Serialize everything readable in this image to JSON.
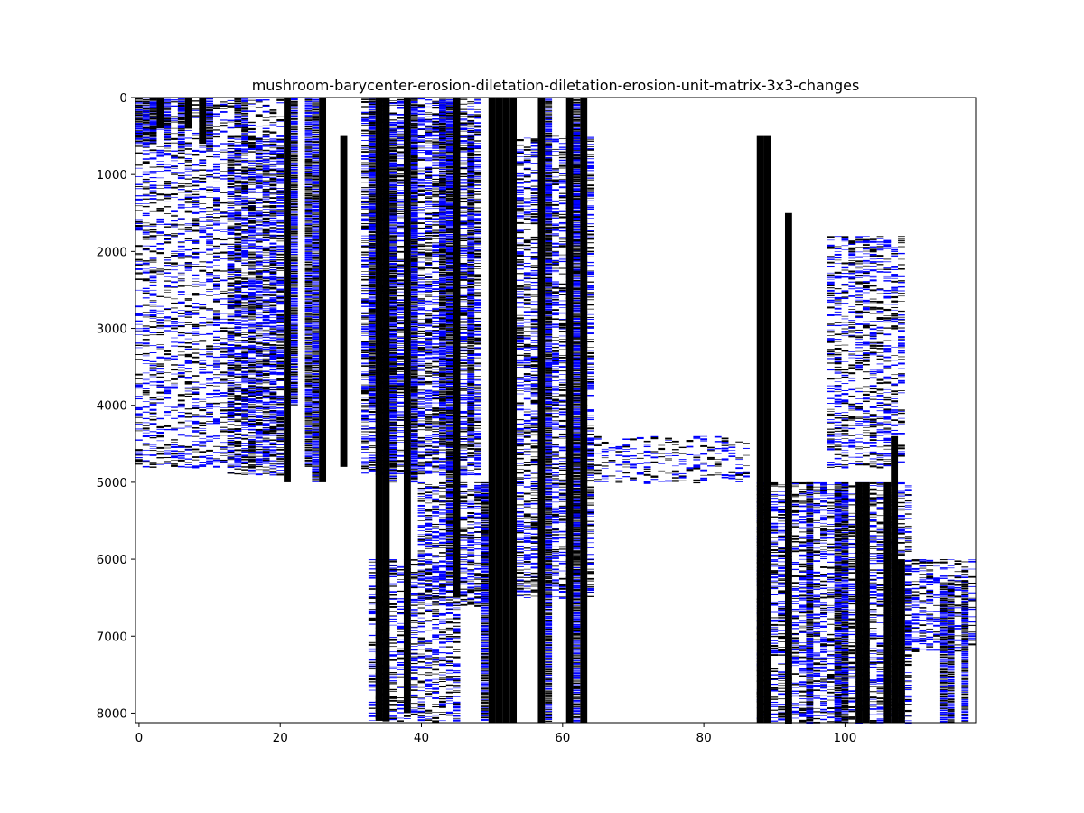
{
  "chart_data": {
    "type": "heatmap",
    "title": "mushroom-barycenter-erosion-diletation-diletation-erosion-unit-matrix-3x3-changes",
    "xlabel": "",
    "ylabel": "",
    "xlim": [
      -0.5,
      118.5
    ],
    "ylim": [
      8124,
      0
    ],
    "y_inverted": true,
    "x_ticks": [
      0,
      20,
      40,
      60,
      80,
      100
    ],
    "x_tick_labels": [
      "0",
      "20",
      "40",
      "60",
      "80",
      "100"
    ],
    "y_ticks": [
      0,
      1000,
      2000,
      3000,
      4000,
      5000,
      6000,
      7000,
      8000
    ],
    "y_tick_labels": [
      "0",
      "1000",
      "2000",
      "3000",
      "4000",
      "5000",
      "6000",
      "7000",
      "8000"
    ],
    "grid": false,
    "legend": "none",
    "colors": {
      "zero": "#ffffff",
      "neg": "#000000",
      "pos": "#0000ff"
    },
    "dense_columns": [
      {
        "col": 0,
        "from": 0,
        "to": 600,
        "style": "mixed"
      },
      {
        "col": 1,
        "from": 0,
        "to": 650,
        "style": "mixed"
      },
      {
        "col": 2,
        "from": 0,
        "to": 600,
        "style": "mixed"
      },
      {
        "col": 3,
        "from": 0,
        "to": 400,
        "style": "black"
      },
      {
        "col": 4,
        "from": 0,
        "to": 550,
        "style": "mixed"
      },
      {
        "col": 6,
        "from": 0,
        "to": 700,
        "style": "mixed"
      },
      {
        "col": 7,
        "from": 0,
        "to": 400,
        "style": "black"
      },
      {
        "col": 9,
        "from": 0,
        "to": 600,
        "style": "black"
      },
      {
        "col": 10,
        "from": 0,
        "to": 700,
        "style": "mixed"
      },
      {
        "col": 14,
        "from": 0,
        "to": 400,
        "style": "mixed"
      },
      {
        "col": 15,
        "from": 0,
        "to": 600,
        "style": "mixed"
      },
      {
        "col": 21,
        "from": 0,
        "to": 5000,
        "style": "black"
      },
      {
        "col": 22,
        "from": 0,
        "to": 4000,
        "style": "mixed"
      },
      {
        "col": 24,
        "from": 0,
        "to": 4800,
        "style": "mixed"
      },
      {
        "col": 25,
        "from": 0,
        "to": 5000,
        "style": "mixed"
      },
      {
        "col": 26,
        "from": 0,
        "to": 5000,
        "style": "black"
      },
      {
        "col": 29,
        "from": 500,
        "to": 4800,
        "style": "black"
      },
      {
        "col": 33,
        "from": 0,
        "to": 4000,
        "style": "mixed"
      },
      {
        "col": 34,
        "from": 0,
        "to": 8100,
        "style": "black"
      },
      {
        "col": 35,
        "from": 0,
        "to": 8100,
        "style": "black"
      },
      {
        "col": 36,
        "from": 500,
        "to": 5000,
        "style": "mixed"
      },
      {
        "col": 38,
        "from": 0,
        "to": 8000,
        "style": "black"
      },
      {
        "col": 39,
        "from": 0,
        "to": 5000,
        "style": "mixed"
      },
      {
        "col": 43,
        "from": 0,
        "to": 4500,
        "style": "mixed"
      },
      {
        "col": 44,
        "from": 0,
        "to": 6000,
        "style": "mixed"
      },
      {
        "col": 45,
        "from": 0,
        "to": 6500,
        "style": "black"
      },
      {
        "col": 47,
        "from": 500,
        "to": 4500,
        "style": "mixed"
      },
      {
        "col": 49,
        "from": 5000,
        "to": 8100,
        "style": "mixed"
      },
      {
        "col": 50,
        "from": 0,
        "to": 8124,
        "style": "black"
      },
      {
        "col": 51,
        "from": 0,
        "to": 8124,
        "style": "black"
      },
      {
        "col": 52,
        "from": 0,
        "to": 8124,
        "style": "black"
      },
      {
        "col": 53,
        "from": 0,
        "to": 8124,
        "style": "black"
      },
      {
        "col": 57,
        "from": 0,
        "to": 8124,
        "style": "black"
      },
      {
        "col": 58,
        "from": 0,
        "to": 8124,
        "style": "mixed"
      },
      {
        "col": 61,
        "from": 0,
        "to": 8124,
        "style": "black"
      },
      {
        "col": 62,
        "from": 0,
        "to": 8124,
        "style": "mixed"
      },
      {
        "col": 63,
        "from": 0,
        "to": 8124,
        "style": "black"
      },
      {
        "col": 88,
        "from": 500,
        "to": 8124,
        "style": "black"
      },
      {
        "col": 89,
        "from": 500,
        "to": 8124,
        "style": "black"
      },
      {
        "col": 92,
        "from": 1500,
        "to": 8124,
        "style": "black"
      },
      {
        "col": 95,
        "from": 5000,
        "to": 8124,
        "style": "mixed"
      },
      {
        "col": 99,
        "from": 5000,
        "to": 8124,
        "style": "mixed"
      },
      {
        "col": 100,
        "from": 5000,
        "to": 8124,
        "style": "mixed"
      },
      {
        "col": 102,
        "from": 5000,
        "to": 8124,
        "style": "black"
      },
      {
        "col": 103,
        "from": 5000,
        "to": 8124,
        "style": "black"
      },
      {
        "col": 106,
        "from": 5000,
        "to": 8124,
        "style": "black"
      },
      {
        "col": 107,
        "from": 4400,
        "to": 8124,
        "style": "black"
      },
      {
        "col": 108,
        "from": 6000,
        "to": 8124,
        "style": "black"
      },
      {
        "col": 114,
        "from": 6300,
        "to": 8124,
        "style": "mixed"
      },
      {
        "col": 115,
        "from": 6300,
        "to": 8124,
        "style": "mixed"
      },
      {
        "col": 117,
        "from": 6300,
        "to": 8124,
        "style": "mixed"
      }
    ],
    "sparse_regions": [
      {
        "cols": [
          0,
          20
        ],
        "from": 0,
        "to": 4800,
        "density": 0.45
      },
      {
        "cols": [
          13,
          20
        ],
        "from": 500,
        "to": 4900,
        "density": 0.7
      },
      {
        "cols": [
          32,
          48
        ],
        "from": 0,
        "to": 4900,
        "density": 0.75
      },
      {
        "cols": [
          40,
          49
        ],
        "from": 5000,
        "to": 6600,
        "density": 0.7
      },
      {
        "cols": [
          54,
          64
        ],
        "from": 500,
        "to": 6500,
        "density": 0.6
      },
      {
        "cols": [
          64,
          86
        ],
        "from": 4400,
        "to": 5000,
        "density": 0.35
      },
      {
        "cols": [
          88,
          109
        ],
        "from": 5000,
        "to": 8124,
        "density": 0.6
      },
      {
        "cols": [
          98,
          108
        ],
        "from": 1800,
        "to": 4800,
        "density": 0.5
      },
      {
        "cols": [
          109,
          118
        ],
        "from": 6000,
        "to": 7200,
        "density": 0.5
      },
      {
        "cols": [
          33,
          45
        ],
        "from": 6000,
        "to": 8100,
        "density": 0.55
      }
    ]
  }
}
